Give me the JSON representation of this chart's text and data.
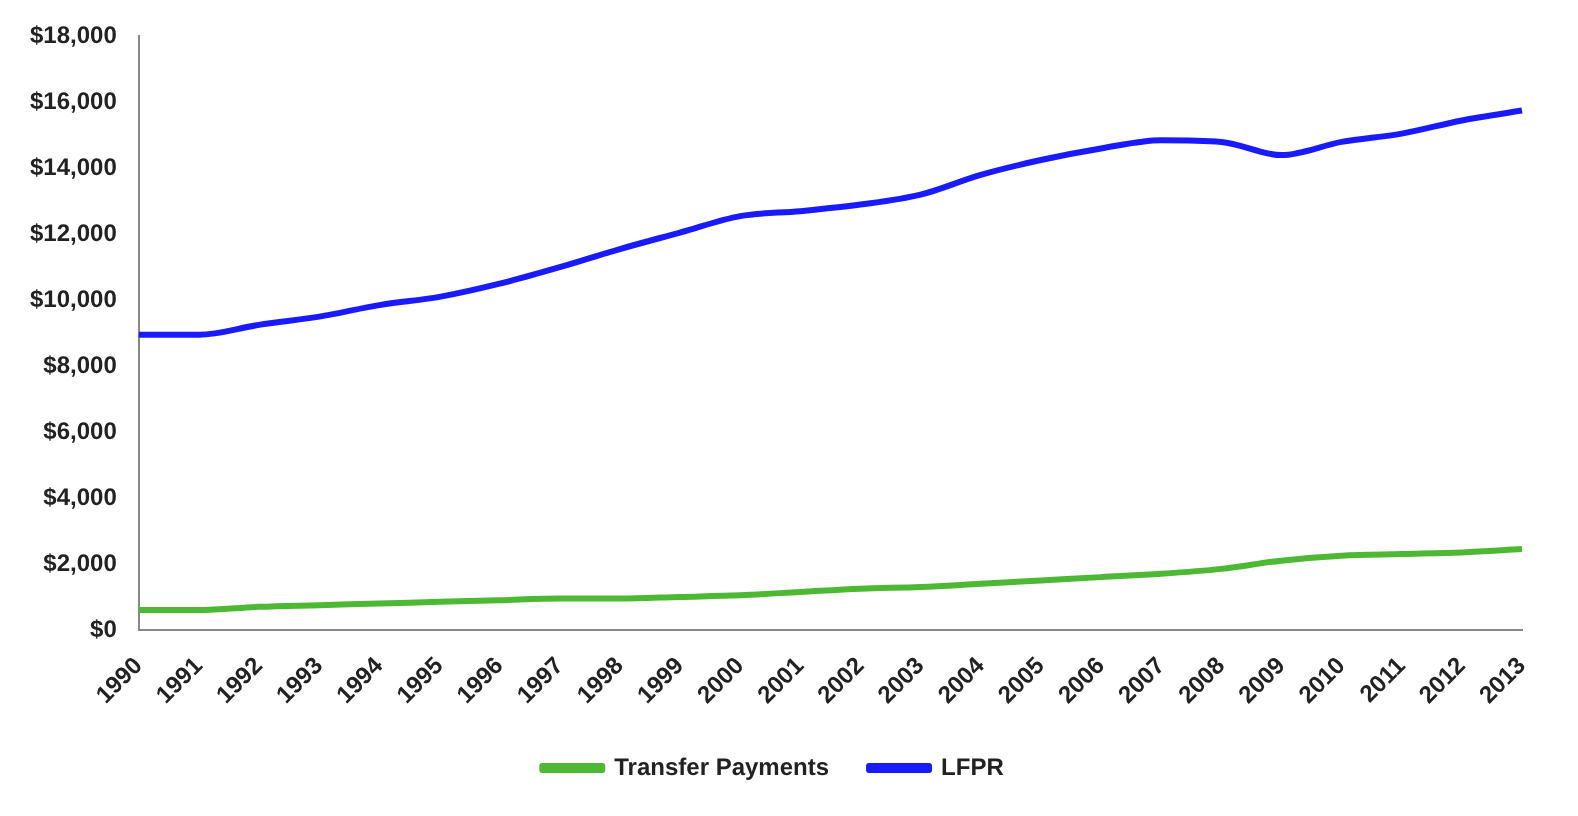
{
  "chart_data": {
    "type": "line",
    "categories": [
      "1990",
      "1991",
      "1992",
      "1993",
      "1994",
      "1995",
      "1996",
      "1997",
      "1998",
      "1999",
      "2000",
      "2001",
      "2002",
      "2003",
      "2004",
      "2005",
      "2006",
      "2007",
      "2008",
      "2009",
      "2010",
      "2011",
      "2012",
      "2013"
    ],
    "series": [
      {
        "name": "Transfer Payments",
        "color": "#4db833",
        "values": [
          600,
          600,
          700,
          750,
          800,
          850,
          900,
          950,
          950,
          1000,
          1050,
          1150,
          1250,
          1300,
          1400,
          1500,
          1600,
          1700,
          1850,
          2100,
          2250,
          2300,
          2350,
          2450
        ]
      },
      {
        "name": "LFPR",
        "color": "#1a1aff",
        "values": [
          8950,
          8950,
          9250,
          9500,
          9850,
          10100,
          10500,
          11000,
          11550,
          12050,
          12550,
          12700,
          12900,
          13200,
          13800,
          14250,
          14600,
          14850,
          14800,
          14400,
          14800,
          15050,
          15450,
          15750
        ]
      }
    ],
    "ylim": [
      0,
      18000
    ],
    "yticks": [
      {
        "value": 0,
        "label": "$0"
      },
      {
        "value": 2000,
        "label": "$2,000"
      },
      {
        "value": 4000,
        "label": "$4,000"
      },
      {
        "value": 6000,
        "label": "$6,000"
      },
      {
        "value": 8000,
        "label": "$8,000"
      },
      {
        "value": 10000,
        "label": "$10,000"
      },
      {
        "value": 12000,
        "label": "$12,000"
      },
      {
        "value": 14000,
        "label": "$14,000"
      },
      {
        "value": 16000,
        "label": "$16,000"
      },
      {
        "value": 18000,
        "label": "$18,000"
      }
    ],
    "legend": "bottom",
    "marker": "none",
    "line_style": "solid"
  }
}
